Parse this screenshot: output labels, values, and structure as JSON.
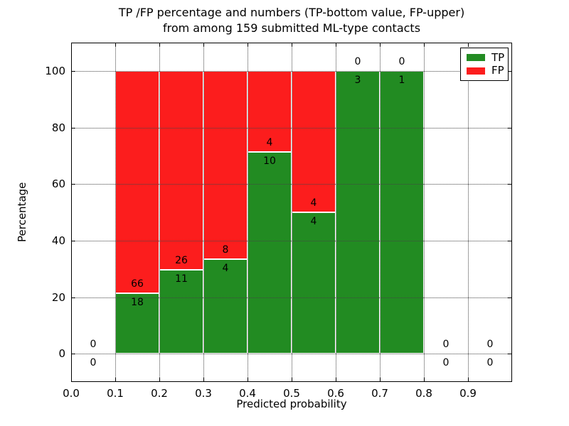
{
  "chart_data": {
    "type": "bar",
    "stacked": true,
    "title_line1": "TP /FP percentage and numbers (TP-bottom value, FP-upper)",
    "title_line2": "from among 159 submitted ML-type contacts",
    "xlabel": "Predicted probability",
    "ylabel": "Percentage",
    "xlim": [
      0.0,
      1.0
    ],
    "ylim": [
      -10,
      110
    ],
    "grid": "dotted",
    "x_ticks": [
      {
        "v": 0.0,
        "label": "0.0"
      },
      {
        "v": 0.1,
        "label": "0.1"
      },
      {
        "v": 0.2,
        "label": "0.2"
      },
      {
        "v": 0.3,
        "label": "0.3"
      },
      {
        "v": 0.4,
        "label": "0.4"
      },
      {
        "v": 0.5,
        "label": "0.5"
      },
      {
        "v": 0.6,
        "label": "0.6"
      },
      {
        "v": 0.7,
        "label": "0.7"
      },
      {
        "v": 0.8,
        "label": "0.8"
      },
      {
        "v": 0.9,
        "label": "0.9"
      }
    ],
    "y_ticks": [
      0,
      20,
      40,
      60,
      80,
      100
    ],
    "categories": [
      "0.0-0.1",
      "0.1-0.2",
      "0.2-0.3",
      "0.3-0.4",
      "0.4-0.5",
      "0.5-0.6",
      "0.6-0.7",
      "0.7-0.8",
      "0.8-0.9",
      "0.9-1.0"
    ],
    "series": [
      {
        "name": "TP",
        "counts": [
          0,
          18,
          11,
          4,
          10,
          4,
          3,
          1,
          0,
          0
        ],
        "pct": [
          0,
          21.43,
          29.73,
          33.33,
          71.43,
          50,
          100,
          100,
          0,
          0
        ]
      },
      {
        "name": "FP",
        "counts": [
          0,
          66,
          26,
          8,
          4,
          4,
          0,
          0,
          0,
          0
        ],
        "pct": [
          0,
          78.57,
          70.27,
          66.67,
          28.57,
          50,
          0,
          0,
          0,
          0
        ]
      }
    ],
    "bins": [
      {
        "x0": 0.0,
        "x1": 0.1,
        "tp": 0,
        "fp": 0,
        "tp_pct": 0
      },
      {
        "x0": 0.1,
        "x1": 0.2,
        "tp": 18,
        "fp": 66,
        "tp_pct": 21.43
      },
      {
        "x0": 0.2,
        "x1": 0.3,
        "tp": 11,
        "fp": 26,
        "tp_pct": 29.73
      },
      {
        "x0": 0.3,
        "x1": 0.4,
        "tp": 4,
        "fp": 8,
        "tp_pct": 33.33
      },
      {
        "x0": 0.4,
        "x1": 0.5,
        "tp": 10,
        "fp": 4,
        "tp_pct": 71.43
      },
      {
        "x0": 0.5,
        "x1": 0.6,
        "tp": 4,
        "fp": 4,
        "tp_pct": 50
      },
      {
        "x0": 0.6,
        "x1": 0.7,
        "tp": 3,
        "fp": 0,
        "tp_pct": 100
      },
      {
        "x0": 0.7,
        "x1": 0.8,
        "tp": 1,
        "fp": 0,
        "tp_pct": 100
      },
      {
        "x0": 0.8,
        "x1": 0.9,
        "tp": 0,
        "fp": 0,
        "tp_pct": 0
      },
      {
        "x0": 0.9,
        "x1": 1.0,
        "tp": 0,
        "fp": 0,
        "tp_pct": 0
      }
    ],
    "legend": {
      "position": "upper right",
      "entries": [
        {
          "label": "TP",
          "color": "#228b22"
        },
        {
          "label": "FP",
          "color": "#fc1d1d"
        }
      ]
    },
    "colors": {
      "tp": "#228b22",
      "fp": "#fc1d1d",
      "grid": "#444444",
      "axis": "#000000",
      "bar_edge": "#ffffff",
      "background": "#ffffff"
    }
  }
}
